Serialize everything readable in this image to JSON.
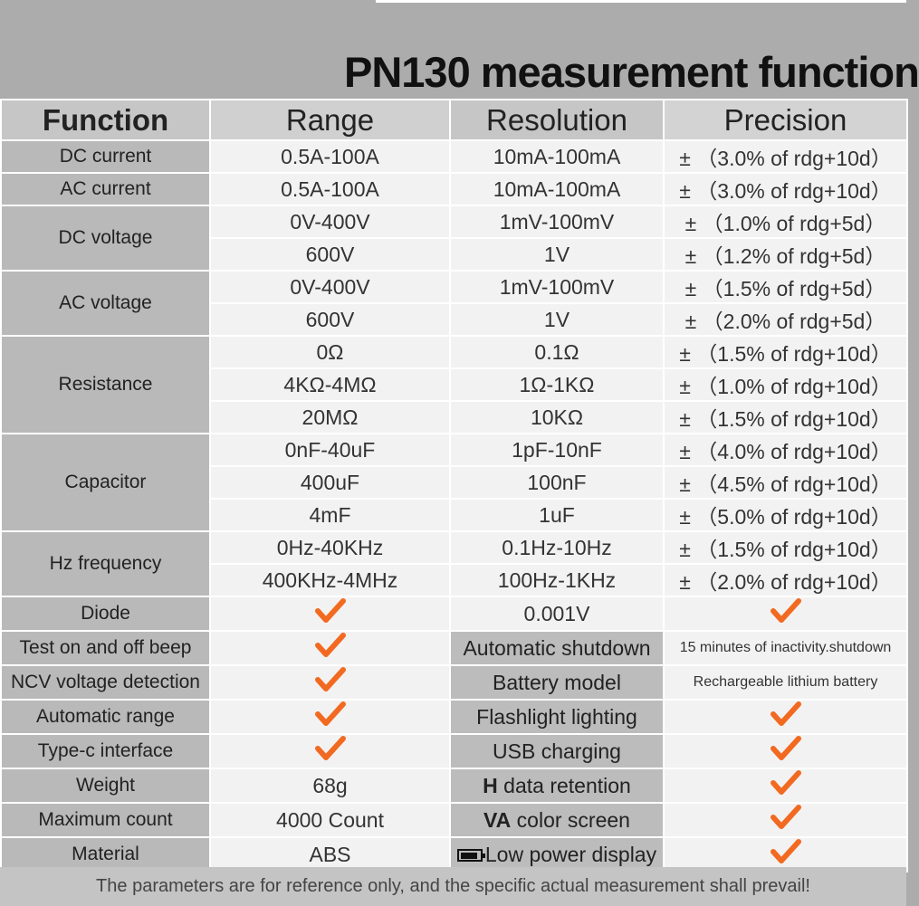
{
  "title": "PN130 measurement function",
  "headers": {
    "function": "Function",
    "range": "Range",
    "resolution": "Resolution",
    "precision": "Precision"
  },
  "rows": {
    "dc_current": {
      "fn": "DC current",
      "range": "0.5A-100A",
      "res": "10mA-100mA",
      "prec": "± （3.0% of rdg+10d）"
    },
    "ac_current": {
      "fn": "AC current",
      "range": "0.5A-100A",
      "res": "10mA-100mA",
      "prec": "± （3.0% of rdg+10d）"
    },
    "dc_voltage": {
      "fn": "DC voltage",
      "r1": {
        "range": "0V-400V",
        "res": "1mV-100mV",
        "prec": "± （1.0% of rdg+5d）"
      },
      "r2": {
        "range": "600V",
        "res": "1V",
        "prec": "± （1.2% of rdg+5d）"
      }
    },
    "ac_voltage": {
      "fn": "AC voltage",
      "r1": {
        "range": "0V-400V",
        "res": "1mV-100mV",
        "prec": "± （1.5% of rdg+5d）"
      },
      "r2": {
        "range": "600V",
        "res": "1V",
        "prec": "± （2.0% of rdg+5d）"
      }
    },
    "resistance": {
      "fn": "Resistance",
      "r1": {
        "range": "0Ω",
        "res": "0.1Ω",
        "prec": "± （1.5% of rdg+10d）"
      },
      "r2": {
        "range": "4KΩ-4MΩ",
        "res": "1Ω-1KΩ",
        "prec": "± （1.0% of rdg+10d）"
      },
      "r3": {
        "range": "20MΩ",
        "res": "10KΩ",
        "prec": "± （1.5% of rdg+10d）"
      }
    },
    "capacitor": {
      "fn": "Capacitor",
      "r1": {
        "range": "0nF-40uF",
        "res": "1pF-10nF",
        "prec": "± （4.0% of rdg+10d）"
      },
      "r2": {
        "range": "400uF",
        "res": "100nF",
        "prec": "± （4.5% of rdg+10d）"
      },
      "r3": {
        "range": "4mF",
        "res": "1uF",
        "prec": "± （5.0% of rdg+10d）"
      }
    },
    "frequency": {
      "fn": "Hz frequency",
      "r1": {
        "range": "0Hz-40KHz",
        "res": "0.1Hz-10Hz",
        "prec": "± （1.5% of rdg+10d）"
      },
      "r2": {
        "range": "400KHz-4MHz",
        "res": "100Hz-1KHz",
        "prec": "± （2.0% of rdg+10d）"
      }
    },
    "diode": {
      "fn": "Diode",
      "res": "0.001V"
    }
  },
  "features_left": {
    "beep": "Test on and off beep",
    "ncv": "NCV voltage detection",
    "auto_range": "Automatic range",
    "typec": "Type-c interface",
    "weight": "Weight",
    "weight_val": "68g",
    "max_count": "Maximum count",
    "max_count_val": "4000 Count",
    "material": "Material",
    "material_val": "ABS"
  },
  "features_right": {
    "shutdown": "Automatic shutdown",
    "shutdown_val": "15 minutes of inactivity.shutdown",
    "battery": "Battery model",
    "battery_val": "Rechargeable lithium battery",
    "flashlight": "Flashlight lighting",
    "usb": "USB charging",
    "hold_prefix": "H",
    "hold": " data retention",
    "va_prefix": "VA",
    "va": " color screen",
    "low_power": "Low power display"
  },
  "footer": "The parameters are for reference only, and the specific actual measurement shall prevail!",
  "colors": {
    "check": "#f26a21",
    "bg": "#acacac",
    "cell": "#f2f2f2",
    "label": "#b9b9b9"
  }
}
